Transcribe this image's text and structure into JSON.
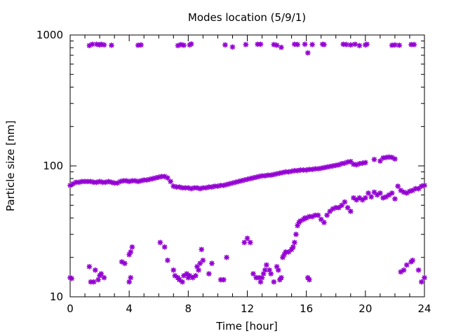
{
  "chart_data": {
    "type": "scatter",
    "title": "Modes location (5/9/1)",
    "xlabel": "Time [hour]",
    "ylabel": "Particle size [nm]",
    "xlim": [
      0,
      24
    ],
    "ylim": [
      10,
      1000
    ],
    "yscale": "log",
    "x_ticks": [
      0,
      4,
      8,
      12,
      16,
      20,
      24
    ],
    "x_tick_labels": [
      "0",
      "4",
      "8",
      "12",
      "16",
      "20",
      "24"
    ],
    "y_ticks": [
      10,
      100,
      1000
    ],
    "y_tick_labels": [
      "10",
      "100",
      "1000"
    ],
    "grid": false,
    "marker": "star",
    "color": "#9400d3",
    "series": [
      {
        "points": [
          [
            0,
            71
          ],
          [
            0.2,
            73
          ],
          [
            0.4,
            75
          ],
          [
            0.6,
            75
          ],
          [
            0.8,
            76
          ],
          [
            1.0,
            76
          ],
          [
            1.2,
            76
          ],
          [
            1.4,
            76
          ],
          [
            1.6,
            75
          ],
          [
            1.8,
            75
          ],
          [
            2.0,
            76
          ],
          [
            2.2,
            75
          ],
          [
            2.4,
            75
          ],
          [
            2.6,
            76
          ],
          [
            2.8,
            75
          ],
          [
            3.0,
            74
          ],
          [
            3.2,
            74
          ],
          [
            3.4,
            76
          ],
          [
            3.6,
            77
          ],
          [
            3.8,
            77
          ],
          [
            4.0,
            76
          ],
          [
            4.2,
            77
          ],
          [
            4.4,
            77
          ],
          [
            4.6,
            76
          ],
          [
            4.8,
            77
          ],
          [
            5.0,
            78
          ],
          [
            5.2,
            78
          ],
          [
            5.4,
            79
          ],
          [
            5.6,
            80
          ],
          [
            5.8,
            81
          ],
          [
            6.0,
            82
          ],
          [
            6.2,
            83
          ],
          [
            6.4,
            83
          ],
          [
            6.6,
            81
          ],
          [
            6.8,
            76
          ],
          [
            7.0,
            70
          ],
          [
            7.2,
            69
          ],
          [
            7.4,
            69
          ],
          [
            7.6,
            68
          ],
          [
            7.8,
            68
          ],
          [
            8.0,
            68
          ],
          [
            8.2,
            67
          ],
          [
            8.4,
            68
          ],
          [
            8.6,
            68
          ],
          [
            8.8,
            67
          ],
          [
            9.0,
            68
          ],
          [
            9.2,
            68
          ],
          [
            9.4,
            69
          ],
          [
            9.6,
            69
          ],
          [
            9.8,
            70
          ],
          [
            10.0,
            70
          ],
          [
            10.2,
            71
          ],
          [
            10.4,
            71
          ],
          [
            10.6,
            72
          ],
          [
            10.8,
            73
          ],
          [
            11.0,
            74
          ],
          [
            11.2,
            75
          ],
          [
            11.4,
            76
          ],
          [
            11.6,
            77
          ],
          [
            11.8,
            78
          ],
          [
            12.0,
            79
          ],
          [
            12.2,
            80
          ],
          [
            12.4,
            81
          ],
          [
            12.6,
            82
          ],
          [
            12.8,
            83
          ],
          [
            13.0,
            84
          ],
          [
            13.2,
            84
          ],
          [
            13.4,
            85
          ],
          [
            13.6,
            85
          ],
          [
            13.8,
            86
          ],
          [
            14.0,
            87
          ],
          [
            14.2,
            88
          ],
          [
            14.4,
            89
          ],
          [
            14.6,
            90
          ],
          [
            14.8,
            90
          ],
          [
            15.0,
            91
          ],
          [
            15.2,
            92
          ],
          [
            15.4,
            92
          ],
          [
            15.6,
            93
          ],
          [
            15.8,
            93
          ],
          [
            16.0,
            93
          ],
          [
            16.2,
            94
          ],
          [
            16.4,
            94
          ],
          [
            16.6,
            95
          ],
          [
            16.8,
            95
          ],
          [
            17.0,
            96
          ],
          [
            17.2,
            97
          ],
          [
            17.4,
            98
          ],
          [
            17.6,
            99
          ],
          [
            17.8,
            100
          ],
          [
            18.0,
            101
          ],
          [
            18.2,
            102
          ],
          [
            18.4,
            104
          ],
          [
            18.6,
            105
          ],
          [
            18.8,
            107
          ],
          [
            19.0,
            108
          ],
          [
            19.2,
            103
          ],
          [
            19.4,
            102
          ],
          [
            19.6,
            104
          ],
          [
            19.8,
            105
          ],
          [
            20.0,
            106
          ],
          [
            20.6,
            112
          ],
          [
            21.0,
            109
          ],
          [
            21.2,
            115
          ],
          [
            21.4,
            116
          ],
          [
            21.6,
            117
          ],
          [
            21.8,
            116
          ],
          [
            22.0,
            113
          ],
          [
            1.3,
            830
          ],
          [
            1.5,
            850
          ],
          [
            1.8,
            850
          ],
          [
            2.0,
            840
          ],
          [
            2.1,
            850
          ],
          [
            2.3,
            840
          ],
          [
            2.8,
            835
          ],
          [
            4.6,
            835
          ],
          [
            4.8,
            840
          ],
          [
            7.3,
            830
          ],
          [
            7.5,
            845
          ],
          [
            7.7,
            835
          ],
          [
            8.1,
            840
          ],
          [
            8.2,
            855
          ],
          [
            10.5,
            840
          ],
          [
            11.0,
            810
          ],
          [
            11.9,
            845
          ],
          [
            12.7,
            850
          ],
          [
            12.9,
            850
          ],
          [
            13.8,
            845
          ],
          [
            14.0,
            835
          ],
          [
            14.3,
            805
          ],
          [
            15.2,
            850
          ],
          [
            15.4,
            845
          ],
          [
            15.9,
            850
          ],
          [
            16.1,
            730
          ],
          [
            16.4,
            845
          ],
          [
            17.1,
            850
          ],
          [
            17.2,
            845
          ],
          [
            18.5,
            850
          ],
          [
            18.7,
            845
          ],
          [
            19.0,
            840
          ],
          [
            19.3,
            850
          ],
          [
            19.6,
            830
          ],
          [
            20.0,
            840
          ],
          [
            20.1,
            850
          ],
          [
            21.8,
            835
          ],
          [
            22.0,
            840
          ],
          [
            22.3,
            835
          ],
          [
            23.1,
            845
          ],
          [
            23.3,
            845
          ],
          [
            0,
            14
          ],
          [
            0.1,
            13.8
          ],
          [
            1.4,
            13
          ],
          [
            1.6,
            13
          ],
          [
            1.3,
            17
          ],
          [
            1.7,
            16
          ],
          [
            1.9,
            13.5
          ],
          [
            2.0,
            14.5
          ],
          [
            2.1,
            15
          ],
          [
            2.3,
            14
          ],
          [
            3.5,
            18.5
          ],
          [
            3.7,
            18
          ],
          [
            4.0,
            13
          ],
          [
            4.1,
            14
          ],
          [
            4.0,
            21
          ],
          [
            4.1,
            22
          ],
          [
            4.2,
            24
          ],
          [
            6.1,
            26
          ],
          [
            6.4,
            24
          ],
          [
            6.6,
            19
          ],
          [
            7.0,
            16
          ],
          [
            7.1,
            14.5
          ],
          [
            7.3,
            14
          ],
          [
            7.4,
            13.5
          ],
          [
            7.6,
            13
          ],
          [
            7.7,
            14.5
          ],
          [
            7.9,
            15
          ],
          [
            8.0,
            14
          ],
          [
            8.1,
            14.5
          ],
          [
            8.3,
            14
          ],
          [
            8.5,
            14.5
          ],
          [
            8.6,
            17
          ],
          [
            8.7,
            16
          ],
          [
            8.8,
            18
          ],
          [
            8.9,
            23
          ],
          [
            9.0,
            19
          ],
          [
            9.4,
            15
          ],
          [
            9.6,
            18
          ],
          [
            10.2,
            13.5
          ],
          [
            10.4,
            13.5
          ],
          [
            10.6,
            20
          ],
          [
            11.8,
            26
          ],
          [
            12.0,
            28
          ],
          [
            12.2,
            26
          ],
          [
            12.4,
            15
          ],
          [
            12.6,
            14
          ],
          [
            12.8,
            14
          ],
          [
            12.9,
            13
          ],
          [
            13.0,
            14
          ],
          [
            13.1,
            15
          ],
          [
            13.2,
            16
          ],
          [
            13.3,
            17.5
          ],
          [
            13.5,
            16
          ],
          [
            13.6,
            15
          ],
          [
            13.8,
            13
          ],
          [
            14.0,
            17
          ],
          [
            14.1,
            16
          ],
          [
            14.2,
            13.5
          ],
          [
            14.3,
            14
          ],
          [
            14.4,
            20
          ],
          [
            14.5,
            21
          ],
          [
            14.6,
            22
          ],
          [
            14.8,
            22
          ],
          [
            15.0,
            23
          ],
          [
            15.1,
            24
          ],
          [
            15.2,
            26
          ],
          [
            15.3,
            30
          ],
          [
            15.4,
            35
          ],
          [
            15.5,
            37
          ],
          [
            15.6,
            38
          ],
          [
            15.8,
            39
          ],
          [
            15.9,
            40
          ],
          [
            16.0,
            40
          ],
          [
            16.2,
            41
          ],
          [
            16.4,
            41
          ],
          [
            16.6,
            42
          ],
          [
            16.8,
            42
          ],
          [
            17.0,
            39
          ],
          [
            17.2,
            37
          ],
          [
            17.4,
            42
          ],
          [
            17.6,
            45
          ],
          [
            17.8,
            47
          ],
          [
            18.0,
            48
          ],
          [
            18.2,
            48
          ],
          [
            18.4,
            50
          ],
          [
            18.6,
            53
          ],
          [
            18.8,
            48
          ],
          [
            19.0,
            45
          ],
          [
            19.2,
            57
          ],
          [
            19.4,
            55
          ],
          [
            19.6,
            57
          ],
          [
            19.8,
            55
          ],
          [
            20.0,
            57
          ],
          [
            20.2,
            62
          ],
          [
            20.4,
            58
          ],
          [
            20.6,
            63
          ],
          [
            20.8,
            60
          ],
          [
            21.0,
            62
          ],
          [
            21.2,
            57
          ],
          [
            21.4,
            58
          ],
          [
            21.6,
            60
          ],
          [
            21.8,
            62
          ],
          [
            22.0,
            56
          ],
          [
            22.2,
            70
          ],
          [
            22.4,
            65
          ],
          [
            22.6,
            63
          ],
          [
            22.8,
            62
          ],
          [
            23.0,
            64
          ],
          [
            23.2,
            65
          ],
          [
            23.4,
            67
          ],
          [
            23.6,
            67
          ],
          [
            23.8,
            70
          ],
          [
            24.0,
            71
          ],
          [
            16.1,
            14
          ],
          [
            16.2,
            13.5
          ],
          [
            22.4,
            15.5
          ],
          [
            22.6,
            16
          ],
          [
            22.8,
            17.5
          ],
          [
            23.1,
            18.5
          ],
          [
            23.2,
            19
          ],
          [
            23.6,
            16
          ],
          [
            23.8,
            13
          ],
          [
            24.0,
            14
          ]
        ]
      }
    ]
  }
}
